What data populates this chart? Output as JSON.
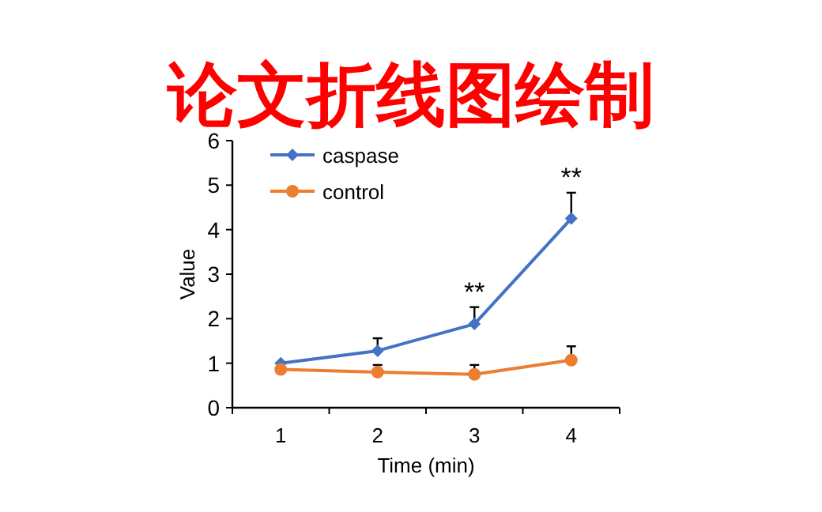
{
  "chart_data": {
    "type": "line",
    "title": "论文折线图绘制",
    "xlabel": "Time (min)",
    "ylabel": "Value",
    "categories": [
      "1",
      "2",
      "3",
      "4"
    ],
    "series": [
      {
        "name": "caspase",
        "color": "#4472c4",
        "marker": "diamond",
        "values": [
          1.0,
          1.28,
          1.88,
          4.25
        ],
        "errors": [
          null,
          [
            1.28,
            1.56
          ],
          [
            1.88,
            2.26
          ],
          [
            4.25,
            4.83
          ]
        ]
      },
      {
        "name": "control",
        "color": "#ed7d31",
        "marker": "circle",
        "values": [
          0.86,
          0.8,
          0.75,
          1.07
        ],
        "errors": [
          null,
          [
            0.8,
            0.96
          ],
          [
            0.75,
            0.96
          ],
          [
            1.07,
            1.38
          ]
        ]
      }
    ],
    "annotations": [
      {
        "text": "**",
        "x": "3",
        "y": 1.88
      },
      {
        "text": "**",
        "x": "4",
        "y": 4.25
      }
    ],
    "ylim": [
      0,
      6
    ],
    "yticks": [
      0,
      1,
      2,
      3,
      4,
      5,
      6
    ],
    "grid": false,
    "legend": "top left",
    "line_style": "solid"
  }
}
